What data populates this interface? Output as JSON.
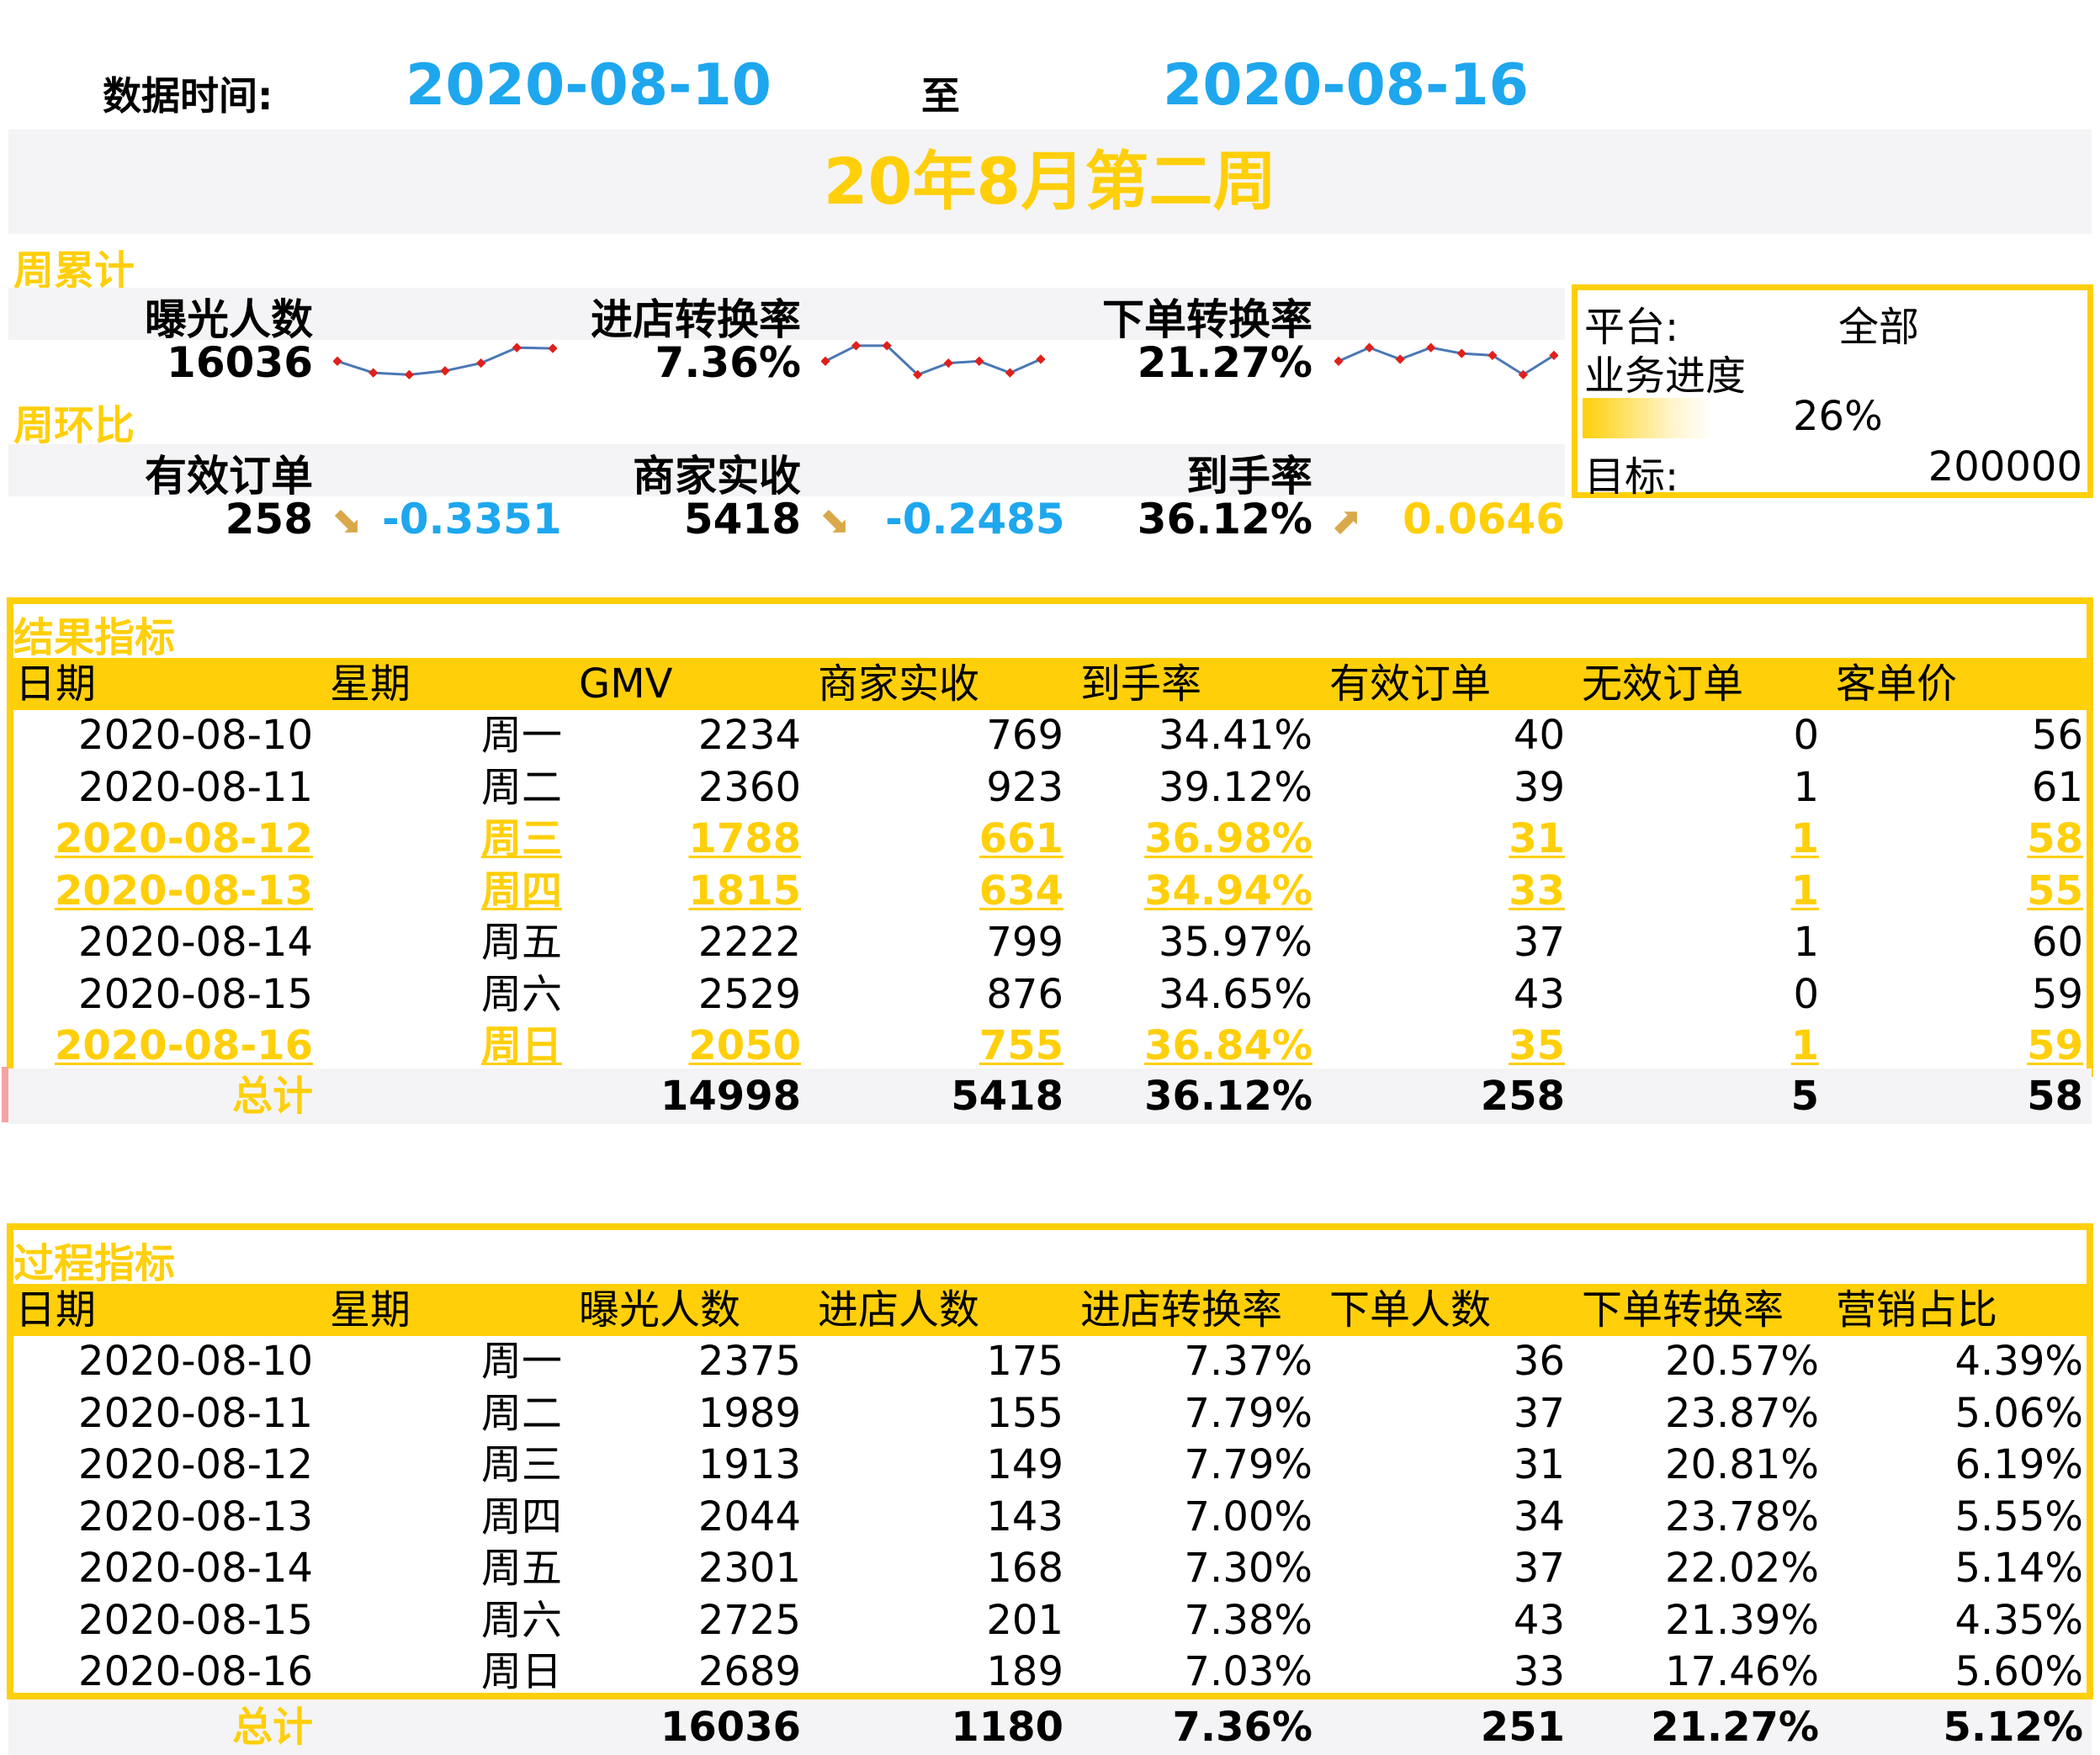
{
  "header": {
    "date_label": "数据时间:",
    "start_date": "2020-08-10",
    "to": "至",
    "end_date": "2020-08-16",
    "title": "20年8月第二周"
  },
  "week_total": {
    "tag": "周累计",
    "metrics": [
      {
        "label": "曝光人数",
        "value": "16036",
        "trend": [
          0.45,
          0.15,
          0.1,
          0.2,
          0.4,
          0.8,
          0.78
        ]
      },
      {
        "label": "进店转换率",
        "value": "7.36%",
        "trend": [
          0.45,
          0.85,
          0.85,
          0.1,
          0.4,
          0.45,
          0.15,
          0.5
        ]
      },
      {
        "label": "下单转换率",
        "value": "21.27%",
        "trend": [
          0.45,
          0.8,
          0.5,
          0.8,
          0.65,
          0.6,
          0.1,
          0.6
        ]
      }
    ]
  },
  "week_ratio": {
    "tag": "周环比",
    "metrics": [
      {
        "label": "有效订单",
        "value": "258",
        "arrow": "down",
        "change": "-0.3351",
        "color": "#1ea7ee"
      },
      {
        "label": "商家实收",
        "value": "5418",
        "arrow": "down",
        "change": "-0.2485",
        "color": "#1ea7ee"
      },
      {
        "label": "到手率",
        "value": "36.12%",
        "arrow": "up",
        "change": "0.0646",
        "color": "#ffcf0a"
      }
    ]
  },
  "platform": {
    "platform_label": "平台:",
    "platform_value": "全部",
    "progress_label": "业务进度",
    "progress_value": "26%",
    "progress": 0.26,
    "target_label": "目标:",
    "target_value": "200000"
  },
  "result_table": {
    "title": "结果指标",
    "headers": [
      "日期",
      "星期",
      "GMV",
      "商家实收",
      "到手率",
      "有效订单",
      "无效订单",
      "客单价"
    ],
    "rows": [
      {
        "cells": [
          "2020-08-10",
          "周一",
          "2234",
          "769",
          "34.41%",
          "40",
          "0",
          "56"
        ],
        "highlight": false
      },
      {
        "cells": [
          "2020-08-11",
          "周二",
          "2360",
          "923",
          "39.12%",
          "39",
          "1",
          "61"
        ],
        "highlight": false
      },
      {
        "cells": [
          "2020-08-12",
          "周三",
          "1788",
          "661",
          "36.98%",
          "31",
          "1",
          "58"
        ],
        "highlight": true
      },
      {
        "cells": [
          "2020-08-13",
          "周四",
          "1815",
          "634",
          "34.94%",
          "33",
          "1",
          "55"
        ],
        "highlight": true
      },
      {
        "cells": [
          "2020-08-14",
          "周五",
          "2222",
          "799",
          "35.97%",
          "37",
          "1",
          "60"
        ],
        "highlight": false
      },
      {
        "cells": [
          "2020-08-15",
          "周六",
          "2529",
          "876",
          "34.65%",
          "43",
          "0",
          "59"
        ],
        "highlight": false
      },
      {
        "cells": [
          "2020-08-16",
          "周日",
          "2050",
          "755",
          "36.84%",
          "35",
          "1",
          "59"
        ],
        "highlight": true
      }
    ],
    "total": [
      "总计",
      "",
      "14998",
      "5418",
      "36.12%",
      "258",
      "5",
      "58"
    ]
  },
  "process_table": {
    "title": "过程指标",
    "headers": [
      "日期",
      "星期",
      "曝光人数",
      "进店人数",
      "进店转换率",
      "下单人数",
      "下单转换率",
      "营销占比"
    ],
    "rows": [
      {
        "cells": [
          "2020-08-10",
          "周一",
          "2375",
          "175",
          "7.37%",
          "36",
          "20.57%",
          "4.39%"
        ]
      },
      {
        "cells": [
          "2020-08-11",
          "周二",
          "1989",
          "155",
          "7.79%",
          "37",
          "23.87%",
          "5.06%"
        ]
      },
      {
        "cells": [
          "2020-08-12",
          "周三",
          "1913",
          "149",
          "7.79%",
          "31",
          "20.81%",
          "6.19%"
        ]
      },
      {
        "cells": [
          "2020-08-13",
          "周四",
          "2044",
          "143",
          "7.00%",
          "34",
          "23.78%",
          "5.55%"
        ]
      },
      {
        "cells": [
          "2020-08-14",
          "周五",
          "2301",
          "168",
          "7.30%",
          "37",
          "22.02%",
          "5.14%"
        ]
      },
      {
        "cells": [
          "2020-08-15",
          "周六",
          "2725",
          "201",
          "7.38%",
          "43",
          "21.39%",
          "4.35%"
        ]
      },
      {
        "cells": [
          "2020-08-16",
          "周日",
          "2689",
          "189",
          "7.03%",
          "33",
          "17.46%",
          "5.60%"
        ]
      }
    ],
    "total": [
      "总计",
      "",
      "16036",
      "1180",
      "7.36%",
      "251",
      "21.27%",
      "5.12%"
    ]
  }
}
